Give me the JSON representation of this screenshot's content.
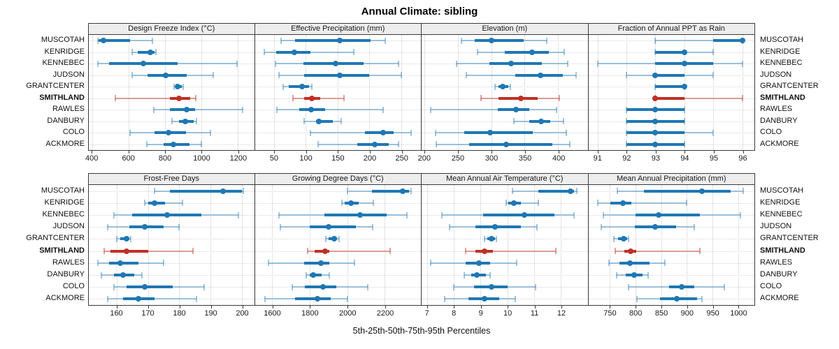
{
  "title": "Annual Climate: sibling",
  "caption": "5th-25th-50th-75th-95th Percentiles",
  "colors": {
    "series": "#1f77b4",
    "series_light": "rgba(31,119,180,0.42)",
    "highlight": "#bf3126",
    "highlight_light": "rgba(191,49,38,0.45)",
    "header_bg": "#ededed",
    "panel_border": "#3a3a3a",
    "grid": "#c9c9c9"
  },
  "chart_data": {
    "type": "scatter",
    "subtype": "trellis percentile dot plot (5th-25th-50th-75th-95th percentile whisker/box/median-dot per station)",
    "legend": "none",
    "grid": "dotted, at x-ticks and at each station row",
    "stations": [
      "MUSCOTAH",
      "KENRIDGE",
      "KENNEBEC",
      "JUDSON",
      "GRANTCENTER",
      "SMITHLAND",
      "RAWLES",
      "DANBURY",
      "COLO",
      "ACKMORE"
    ],
    "highlight_station": "SMITHLAND",
    "percentile_labels": [
      "5th",
      "25th",
      "50th",
      "75th",
      "95th"
    ],
    "panels": [
      {
        "title": "Design Freeze Index (°C)",
        "grid_row": 0,
        "grid_col": 0,
        "xlim": [
          380,
          1290
        ],
        "ticks": [
          400,
          600,
          800,
          1000,
          1200
        ],
        "tick_labels": [
          "400",
          "600",
          "800",
          "1000",
          "1200"
        ],
        "values": [
          [
            429,
            433,
            461,
            608,
            731
          ],
          [
            620,
            650,
            720,
            740,
            750
          ],
          [
            430,
            490,
            680,
            868,
            1195
          ],
          [
            620,
            705,
            805,
            918,
            1065
          ],
          [
            849,
            857,
            868,
            893,
            900
          ],
          [
            527,
            825,
            878,
            938,
            970
          ],
          [
            739,
            825,
            919,
            963,
            1227
          ],
          [
            837,
            875,
            910,
            957,
            973
          ],
          [
            606,
            742,
            818,
            913,
            1049
          ],
          [
            700,
            793,
            845,
            935,
            1000
          ]
        ]
      },
      {
        "title": "Effective Precipitation (mm)",
        "grid_row": 0,
        "grid_col": 1,
        "xlim": [
          20,
          281
        ],
        "ticks": [
          50,
          100,
          150,
          200,
          250
        ],
        "tick_labels": [
          "50",
          "100",
          "150",
          "200",
          "250"
        ],
        "values": [
          [
            61,
            83,
            154,
            202,
            225
          ],
          [
            35,
            54,
            82,
            107,
            176
          ],
          [
            52,
            96,
            147,
            191,
            246
          ],
          [
            58,
            98,
            154,
            200,
            250
          ],
          [
            65,
            73,
            94,
            105,
            110
          ],
          [
            80,
            98,
            110,
            123,
            160
          ],
          [
            55,
            90,
            109,
            130,
            222
          ],
          [
            98,
            116,
            121,
            142,
            156
          ],
          [
            107,
            193,
            222,
            238,
            266
          ],
          [
            120,
            181,
            209,
            230,
            246
          ]
        ]
      },
      {
        "title": "Elevation (m)",
        "grid_row": 0,
        "grid_col": 2,
        "xlim": [
          196,
          444
        ],
        "ticks": [
          200,
          250,
          300,
          350,
          400
        ],
        "tick_labels": [
          "200",
          "250",
          "300",
          "350",
          "400"
        ],
        "values": [
          [
            256,
            275,
            300,
            348,
            383
          ],
          [
            280,
            320,
            361,
            386,
            409
          ],
          [
            248,
            297,
            330,
            376,
            414
          ],
          [
            263,
            336,
            373,
            407,
            427
          ],
          [
            306,
            311,
            317,
            326,
            329
          ],
          [
            285,
            311,
            344,
            369,
            402
          ],
          [
            210,
            310,
            337,
            357,
            398
          ],
          [
            334,
            357,
            375,
            388,
            408
          ],
          [
            217,
            260,
            298,
            362,
            412
          ],
          [
            218,
            267,
            322,
            391,
            417
          ]
        ]
      },
      {
        "title": "Fraction of Annual PPT as Rain",
        "grid_row": 0,
        "grid_col": 3,
        "xlim": [
          90.68,
          96.42
        ],
        "ticks": [
          91,
          92,
          93,
          94,
          95,
          96
        ],
        "tick_labels": [
          "91",
          "92",
          "93",
          "94",
          "95",
          "96"
        ],
        "values": [
          [
            93,
            95,
            96,
            96,
            96
          ],
          [
            93,
            93,
            94,
            94,
            95
          ],
          [
            91,
            93,
            94,
            95,
            96
          ],
          [
            92,
            93,
            93,
            94,
            95
          ],
          [
            93,
            93,
            94,
            94,
            94
          ],
          [
            93,
            93,
            93,
            94,
            96
          ],
          [
            92,
            92,
            93,
            94,
            94
          ],
          [
            92,
            92,
            93,
            94,
            94
          ],
          [
            92,
            92,
            93,
            94,
            95
          ],
          [
            92,
            92,
            93,
            94,
            94
          ]
        ]
      },
      {
        "title": "Frost-Free Days",
        "grid_row": 1,
        "grid_col": 0,
        "xlim": [
          151,
          204
        ],
        "ticks": [
          160,
          170,
          180,
          190,
          200
        ],
        "tick_labels": [
          "160",
          "170",
          "180",
          "190",
          "200"
        ],
        "values": [
          [
            172,
            177,
            194,
            200,
            200.5
          ],
          [
            169,
            170,
            172,
            175.5,
            181
          ],
          [
            159,
            165,
            176,
            187,
            199
          ],
          [
            157,
            164,
            169,
            175,
            180
          ],
          [
            160,
            161,
            163,
            164,
            164.5
          ],
          [
            156,
            158,
            163,
            170,
            184.5
          ],
          [
            154,
            157.5,
            161,
            167,
            175
          ],
          [
            155,
            159,
            162,
            165.5,
            168
          ],
          [
            159,
            163,
            169,
            178,
            188
          ],
          [
            157,
            162,
            167,
            172,
            185.5
          ]
        ]
      },
      {
        "title": "Growing Degree Days (°C)",
        "grid_row": 1,
        "grid_col": 1,
        "xlim": [
          1507,
          2393
        ],
        "ticks": [
          1600,
          1800,
          2000,
          2200
        ],
        "tick_labels": [
          "1600",
          "1800",
          "2000",
          "2200"
        ],
        "values": [
          [
            2000,
            2130,
            2295,
            2330,
            2340
          ],
          [
            1970,
            1985,
            2020,
            2060,
            2140
          ],
          [
            1637,
            1880,
            2070,
            2210,
            2320
          ],
          [
            1645,
            1800,
            1900,
            2045,
            2135
          ],
          [
            1885,
            1900,
            1930,
            1947,
            1955
          ],
          [
            1790,
            1825,
            1883,
            1905,
            2230
          ],
          [
            1580,
            1770,
            1860,
            1905,
            2040
          ],
          [
            1780,
            1800,
            1820,
            1865,
            1905
          ],
          [
            1705,
            1775,
            1870,
            1940,
            2110
          ],
          [
            1560,
            1720,
            1840,
            1910,
            2000
          ]
        ]
      },
      {
        "title": "Mean Annual Air Temperature (°C)",
        "grid_row": 1,
        "grid_col": 2,
        "xlim": [
          6.8,
          13.0
        ],
        "ticks": [
          7,
          8,
          9,
          10,
          11,
          12
        ],
        "tick_labels": [
          "7",
          "8",
          "9",
          "10",
          "11",
          "12"
        ],
        "values": [
          [
            10.2,
            11.15,
            12.35,
            12.5,
            12.6
          ],
          [
            9.95,
            10.05,
            10.25,
            10.5,
            11.15
          ],
          [
            7.55,
            9.1,
            10.65,
            11.75,
            12.5
          ],
          [
            7.85,
            8.8,
            9.55,
            10.5,
            11.1
          ],
          [
            9.15,
            9.25,
            9.4,
            9.55,
            9.6
          ],
          [
            8.45,
            8.8,
            9.15,
            9.45,
            11.8
          ],
          [
            7.15,
            8.45,
            8.95,
            9.35,
            10.35
          ],
          [
            8.4,
            8.65,
            8.85,
            9.2,
            9.35
          ],
          [
            8.0,
            8.75,
            9.4,
            10.0,
            11.05
          ],
          [
            7.65,
            8.55,
            9.15,
            9.7,
            10.3
          ]
        ]
      },
      {
        "title": "Mean Annual Precipitation (mm)",
        "grid_row": 1,
        "grid_col": 3,
        "xlim": [
          708,
          1032
        ],
        "ticks": [
          750,
          800,
          850,
          900,
          950,
          1000
        ],
        "tick_labels": [
          "750",
          "800",
          "850",
          "900",
          "950",
          "1000"
        ],
        "values": [
          [
            765,
            817,
            930,
            985,
            1010
          ],
          [
            727,
            751,
            775,
            792,
            900
          ],
          [
            738,
            800,
            845,
            925,
            1005
          ],
          [
            733,
            799,
            838,
            879,
            915
          ],
          [
            758,
            766,
            777,
            784,
            786
          ],
          [
            760,
            778,
            790,
            802,
            925
          ],
          [
            748,
            769,
            789,
            828,
            858
          ],
          [
            763,
            781,
            797,
            814,
            825
          ],
          [
            787,
            865,
            890,
            915,
            973
          ],
          [
            803,
            848,
            880,
            920,
            930
          ]
        ]
      }
    ]
  }
}
